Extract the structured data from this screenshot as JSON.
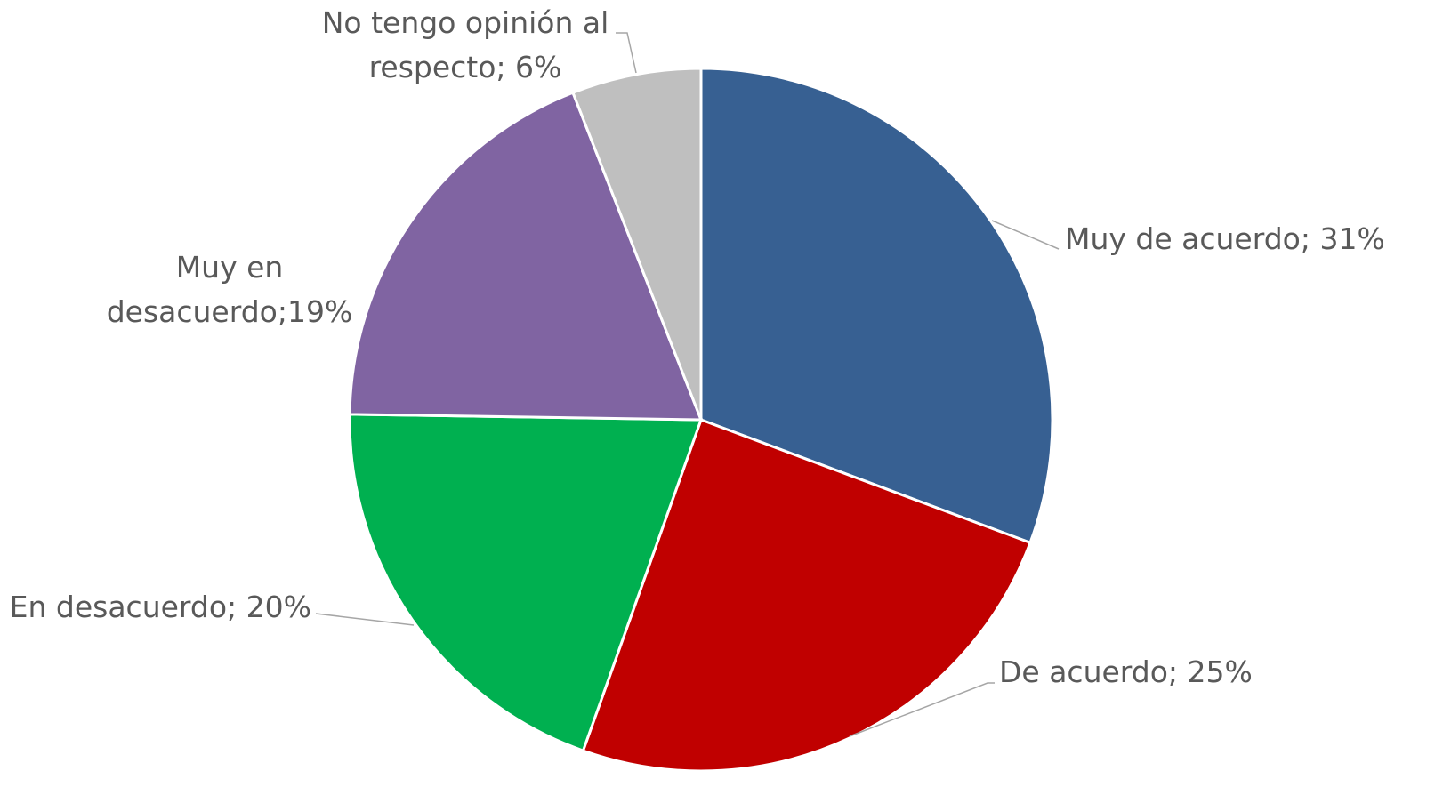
{
  "chart_data": {
    "type": "pie",
    "values": [
      31,
      25,
      20,
      19,
      6
    ],
    "value_labels": [
      "Muy de acuerdo; 31%",
      "De acuerdo; 25%",
      "En desacuerdo; 20%",
      "Muy en\ndesacuerdo;19%",
      "No tengo opinión al\nrespecto; 6%"
    ],
    "colors": [
      "#376092",
      "#c00000",
      "#00b050",
      "#8064a2",
      "#bfbfbf"
    ]
  }
}
